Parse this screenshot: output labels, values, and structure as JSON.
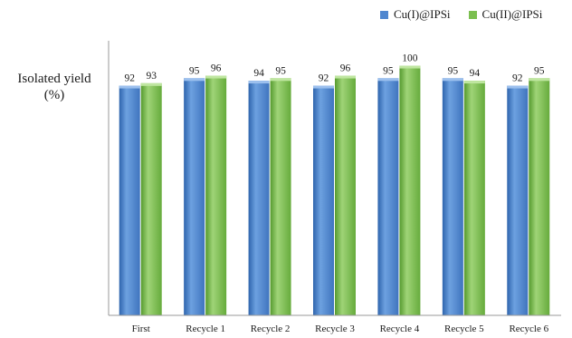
{
  "chart_data": {
    "type": "bar",
    "title": "",
    "ylabel_line1": "Isolated yield",
    "ylabel_line2": "(%)",
    "xlabel": "",
    "categories": [
      "First",
      "Recycle 1",
      "Recycle 2",
      "Recycle 3",
      "Recycle 4",
      "Recycle 5",
      "Recycle 6"
    ],
    "series": [
      {
        "name": "Cu(I)@IPSi",
        "values": [
          92,
          95,
          94,
          92,
          95,
          95,
          92
        ],
        "color": "#4f86cf"
      },
      {
        "name": "Cu(II)@IPSi",
        "values": [
          93,
          96,
          95,
          96,
          100,
          94,
          95
        ],
        "color": "#7bbf4f"
      }
    ],
    "ylim": [
      0,
      110
    ],
    "grid": false,
    "legend_position": "top-right"
  }
}
